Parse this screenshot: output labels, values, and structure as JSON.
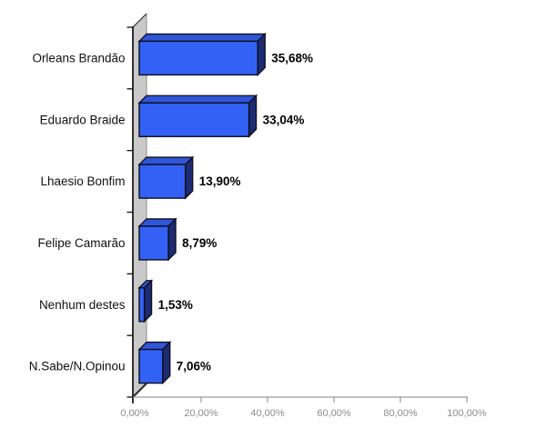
{
  "chart_data": {
    "type": "bar",
    "orientation": "horizontal",
    "style": "3d",
    "title": "",
    "xlabel": "",
    "ylabel": "",
    "grid": "off",
    "legend": "none",
    "xlim": [
      0,
      100
    ],
    "categories": [
      "Orleans Brandão",
      "Eduardo Braide",
      "Lhaesio Bonfim",
      "Felipe Camarão",
      "Nenhum destes",
      "N.Sabe/N.Opinou"
    ],
    "values": [
      35.68,
      33.04,
      13.9,
      8.79,
      1.53,
      7.06
    ],
    "value_labels": [
      "35,68%",
      "33,04%",
      "13,90%",
      "8,79%",
      "1,53%",
      "7,06%"
    ],
    "x_ticks": [
      0,
      20,
      40,
      60,
      80,
      100
    ],
    "x_tick_labels": [
      "0,00%",
      "20,00%",
      "40,00%",
      "60,00%",
      "80,00%",
      "100,00%"
    ],
    "colors": {
      "background": "#ffffff",
      "bar_front": "#3361f5",
      "bar_top": "#3056d8",
      "bar_side": "#1d2b72",
      "bar_outline": "#0d0d1c",
      "wall_fill": "#c9c9c9",
      "wall_right_edge": "#9a9a9a",
      "wall_dark_edge": "#2c2c2c",
      "y_axis_line": "#111111",
      "x_axis_line": "#9b9b9b",
      "x_tick_label": "#8c8c8c",
      "category_label": "#101010",
      "value_label": "#000000"
    }
  }
}
